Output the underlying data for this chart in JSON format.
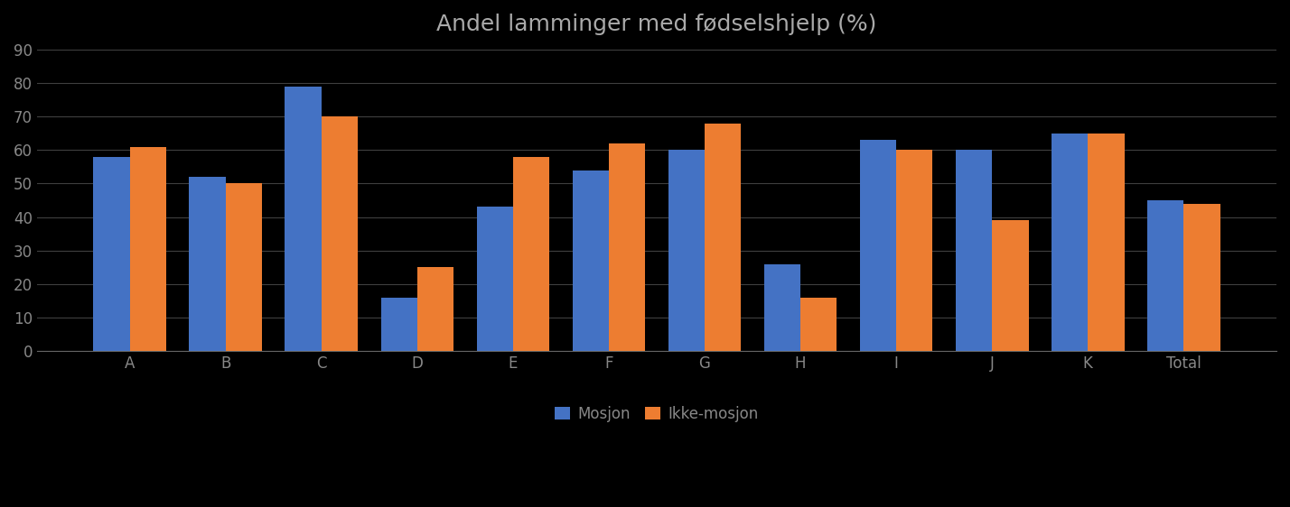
{
  "title": "Andel lamminger med fødselshjelp (%)",
  "categories": [
    "A",
    "B",
    "C",
    "D",
    "E",
    "F",
    "G",
    "H",
    "I",
    "J",
    "K",
    "Total"
  ],
  "mosjon": [
    58,
    52,
    79,
    16,
    43,
    54,
    60,
    26,
    63,
    60,
    65,
    45
  ],
  "ikke_mosjon": [
    61,
    50,
    70,
    25,
    58,
    62,
    68,
    16,
    60,
    39,
    65,
    44
  ],
  "bar_color_mosjon": "#4472C4",
  "bar_color_ikke_mosjon": "#ED7D31",
  "legend_mosjon": "Mosjon",
  "legend_ikke_mosjon": "Ikke-mosjon",
  "ylim": [
    0,
    90
  ],
  "yticks": [
    0,
    10,
    20,
    30,
    40,
    50,
    60,
    70,
    80,
    90
  ],
  "background_color": "#000000",
  "plot_bg_color": "#000000",
  "title_color": "#AAAAAA",
  "tick_color": "#888888",
  "grid_color": "#FFFFFF",
  "grid_alpha": 0.25,
  "title_fontsize": 18,
  "tick_fontsize": 12,
  "legend_fontsize": 12,
  "bar_width": 0.38
}
